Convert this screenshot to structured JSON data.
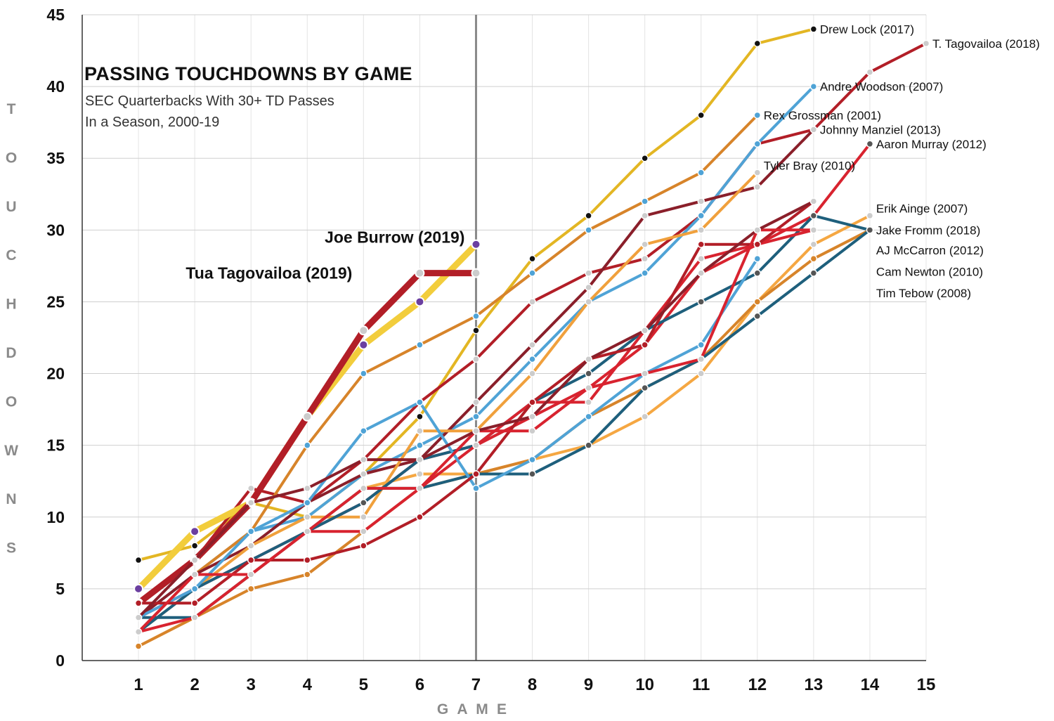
{
  "chart_data": {
    "type": "line",
    "title": "PASSING TOUCHDOWNS BY GAME",
    "subtitle_lines": [
      "SEC Quarterbacks With 30+ TD Passes",
      "In a Season, 2000-19"
    ],
    "xlabel": "GAME",
    "ylabel": "TOUCHDOWNS",
    "xlim": [
      0,
      15
    ],
    "ylim": [
      0,
      45
    ],
    "x_ticks": [
      1,
      2,
      3,
      4,
      5,
      6,
      7,
      8,
      9,
      10,
      11,
      12,
      13,
      14,
      15
    ],
    "y_ticks": [
      0,
      5,
      10,
      15,
      20,
      25,
      30,
      35,
      40,
      45
    ],
    "grid": true,
    "reference_line_x": 7,
    "series": [
      {
        "name": "Drew Lock (2017)",
        "color": "#e3b623",
        "dot": "#111111",
        "values": [
          7,
          8,
          11,
          10,
          13,
          17,
          23,
          28,
          31,
          35,
          38,
          43,
          44
        ]
      },
      {
        "name": "T. Tagovailoa (2018)",
        "color": "#b21e27",
        "dot": "#cccccc",
        "values": [
          4,
          7,
          12,
          11,
          14,
          18,
          21,
          25,
          27,
          28,
          31,
          36,
          37,
          41,
          43
        ]
      },
      {
        "name": "Andre Woodson (2007)",
        "color": "#4fa3d6",
        "dot": "#4fa3d6",
        "values": [
          3,
          6,
          9,
          10,
          13,
          15,
          17,
          21,
          25,
          27,
          31,
          36,
          40
        ]
      },
      {
        "name": "Rex Grossman (2001)",
        "color": "#d7842a",
        "dot": "#4fa3d6",
        "values": [
          2,
          6,
          9,
          15,
          20,
          22,
          24,
          27,
          30,
          32,
          34,
          38
        ]
      },
      {
        "name": "Johnny Manziel (2013)",
        "color": "#8a1f2a",
        "dot": "#cccccc",
        "values": [
          3,
          6,
          8,
          11,
          13,
          14,
          18,
          22,
          26,
          31,
          32,
          33,
          37
        ]
      },
      {
        "name": "Aaron Murray (2012)",
        "color": "#d8232f",
        "dot": "#555555",
        "values": [
          3,
          5,
          7,
          9,
          11,
          14,
          15,
          17,
          19,
          22,
          27,
          29,
          31,
          36
        ]
      },
      {
        "name": "Tyler Bray (2010)",
        "color": "#f0a03c",
        "dot": "#cccccc",
        "values": [
          2,
          5,
          8,
          10,
          10,
          16,
          16,
          20,
          25,
          29,
          30,
          34
        ]
      },
      {
        "name": "Erik Ainge (2007)",
        "color": "#f5a742",
        "dot": "#cccccc",
        "values": [
          1,
          3,
          6,
          9,
          12,
          13,
          13,
          14,
          15,
          17,
          20,
          25,
          29,
          31
        ]
      },
      {
        "name": "Jake Fromm (2018)",
        "color": "#1e5f7c",
        "dot": "#555555",
        "values": [
          2,
          5,
          7,
          9,
          11,
          14,
          15,
          18,
          20,
          23,
          25,
          27,
          31,
          30
        ]
      },
      {
        "name": "AJ McCarron (2012)",
        "color": "#d7842a",
        "dot": "#d7842a",
        "values": [
          1,
          3,
          5,
          6,
          9,
          12,
          13,
          14,
          17,
          19,
          21,
          25,
          28,
          30
        ]
      },
      {
        "name": "Cam Newton (2010)",
        "color": "#1e5f7c",
        "dot": "#555555",
        "values": [
          3,
          3,
          6,
          9,
          12,
          12,
          13,
          13,
          15,
          19,
          21,
          24,
          27,
          30
        ]
      },
      {
        "name": "Tim Tebow (2008)",
        "color": "#d8232f",
        "dot": "#cccccc",
        "values": [
          2,
          3,
          6,
          9,
          9,
          12,
          15,
          18,
          18,
          23,
          28,
          29,
          30
        ]
      },
      {
        "name": "Joe Burrow (2019)",
        "color": "#f2cd3c",
        "dot": "#6b3fa0",
        "values": [
          5,
          9,
          11,
          17,
          22,
          25,
          29
        ]
      },
      {
        "name": "Tua Tagovailoa (2019)",
        "color": "#b21e27",
        "dot": "#cccccc",
        "values": [
          4,
          7,
          11,
          17,
          23,
          27,
          27
        ]
      },
      {
        "name": "",
        "color": "#4fa3d6",
        "dot": "#4fa3d6",
        "values": [
          3,
          5,
          9,
          11,
          16,
          18,
          12,
          14,
          17,
          20,
          22,
          28
        ]
      },
      {
        "name": "",
        "color": "#b21e27",
        "dot": "#b21e27",
        "values": [
          4,
          4,
          7,
          7,
          8,
          10,
          13,
          18,
          21,
          22,
          29,
          29,
          32
        ]
      },
      {
        "name": "",
        "color": "#d8232f",
        "dot": "#cccccc",
        "values": [
          2,
          6,
          6,
          9,
          12,
          12,
          16,
          16,
          19,
          20,
          21,
          30,
          30
        ]
      },
      {
        "name": "",
        "color": "#8a1f2a",
        "dot": "#cccccc",
        "values": [
          3,
          7,
          11,
          12,
          14,
          14,
          16,
          17,
          21,
          23,
          27,
          30,
          32
        ]
      }
    ],
    "end_labels": [
      {
        "text": "Drew Lock (2017)",
        "x": 13,
        "y": 44
      },
      {
        "text": "T. Tagovailoa (2018)",
        "x": 15,
        "y": 43
      },
      {
        "text": "Andre Woodson (2007)",
        "x": 13,
        "y": 40
      },
      {
        "text": "Rex Grossman (2001)",
        "x": 12,
        "y": 38
      },
      {
        "text": "Johnny Manziel (2013)",
        "x": 13,
        "y": 37
      },
      {
        "text": "Aaron Murray (2012)",
        "x": 14,
        "y": 36
      },
      {
        "text": "Tyler Bray (2010)",
        "x": 12,
        "y": 34.5
      },
      {
        "text": "Erik Ainge (2007)",
        "x": 14,
        "y": 31.5
      },
      {
        "text": "Jake Fromm (2018)",
        "x": 14,
        "y": 30
      },
      {
        "text": "AJ McCarron (2012)",
        "x": 14,
        "y": 28.6
      },
      {
        "text": "Cam Newton (2010)",
        "x": 14,
        "y": 27.1
      },
      {
        "text": "Tim Tebow (2008)",
        "x": 14,
        "y": 25.6
      }
    ],
    "highlight_labels": [
      {
        "text": "Joe Burrow (2019)",
        "x": 6.8,
        "y": 29.5
      },
      {
        "text": "Tua Tagovailoa (2019)",
        "x": 4.8,
        "y": 27
      }
    ]
  }
}
